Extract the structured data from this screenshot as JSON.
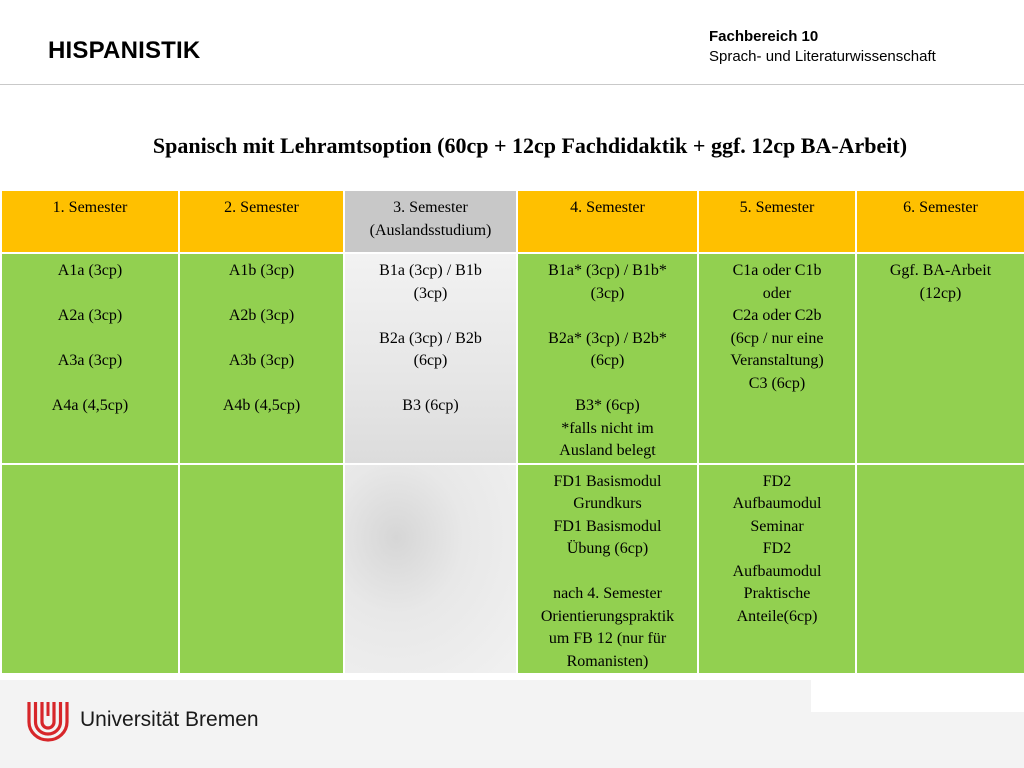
{
  "header": {
    "subject": "HISPANISTIK",
    "department_line1": "Fachbereich 10",
    "department_line2": "Sprach- und Literaturwissenschaft"
  },
  "title": "Spanisch mit Lehramtsoption (60cp + 12cp Fachdidaktik + ggf. 12cp BA-Arbeit)",
  "table": {
    "headers": [
      "1. Semester",
      "2. Semester",
      "3. Semester\n(Auslandsstudium)",
      "4. Semester",
      "5. Semester",
      "6. Semester"
    ],
    "rows": [
      [
        "A1a (3cp)\n\nA2a (3cp)\n\nA3a (3cp)\n\nA4a (4,5cp)",
        "A1b (3cp)\n\nA2b (3cp)\n\nA3b (3cp)\n\nA4b (4,5cp)",
        "B1a (3cp) / B1b\n(3cp)\n\nB2a (3cp) / B2b\n(6cp)\n\nB3 (6cp)",
        "B1a* (3cp) / B1b*\n(3cp)\n\nB2a* (3cp) / B2b*\n(6cp)\n\nB3* (6cp)\n*falls nicht im\nAusland belegt",
        "C1a oder C1b\noder\nC2a oder C2b\n(6cp / nur eine\nVeranstaltung)\nC3 (6cp)",
        "Ggf. BA-Arbeit\n(12cp)"
      ],
      [
        "",
        "",
        "",
        "FD1 Basismodul\nGrundkurs\nFD1 Basismodul\nÜbung (6cp)\n\nnach 4. Semester\nOrientierungspraktik\num FB 12 (nur für\nRomanisten)",
        "FD2\nAufbaumodul\nSeminar\nFD2\nAufbaumodul\nPraktische\nAnteile(6cp)",
        ""
      ]
    ]
  },
  "footer": {
    "university": "Universität Bremen",
    "logo": "university-bremen-logo",
    "logo_color": "#d7262a"
  },
  "colors": {
    "header_row": "#ffc000",
    "body_cells": "#92d050",
    "abroad_column": "#c8c8c8"
  }
}
